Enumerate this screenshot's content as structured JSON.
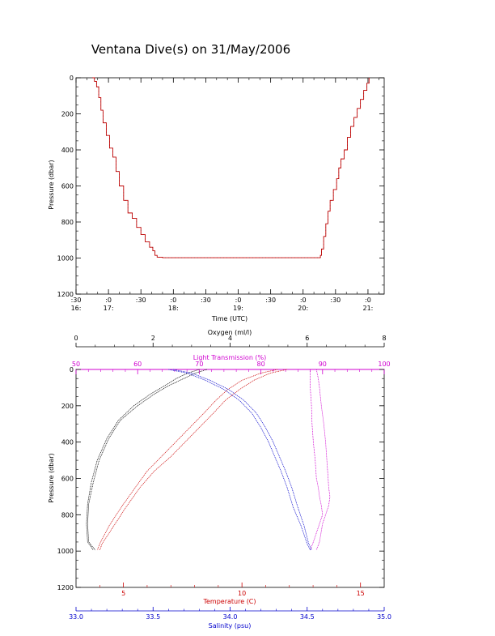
{
  "title": "Ventana Dive(s) on 31/May/2006",
  "colors": {
    "axis": "#000000",
    "oxygen": "#000000",
    "light": "#d000d0",
    "temperature": "#cc0000",
    "salinity": "#0000cc",
    "time_profile": "#cc0000"
  },
  "chart_data": [
    {
      "type": "line",
      "title": "Ventana Dive(s) on 31/May/2006",
      "xlabel": "Time (UTC)",
      "ylabel": "Pressure (dbar)",
      "x_units": "minutes after 16:00 UTC",
      "xlim": [
        30,
        315
      ],
      "ylim": [
        1200,
        0
      ],
      "y_ticks": [
        "0",
        "200",
        "400",
        "600",
        "800",
        "1000",
        "1200"
      ],
      "x_ticks": [
        {
          "x": 30,
          "minute": ":30",
          "hour": "16:"
        },
        {
          "x": 60,
          "minute": ":0",
          "hour": "17:"
        },
        {
          "x": 90,
          "minute": ":30",
          "hour": ""
        },
        {
          "x": 120,
          "minute": ":0",
          "hour": "18:"
        },
        {
          "x": 150,
          "minute": ":30",
          "hour": ""
        },
        {
          "x": 180,
          "minute": ":0",
          "hour": "19:"
        },
        {
          "x": 210,
          "minute": ":30",
          "hour": ""
        },
        {
          "x": 240,
          "minute": ":0",
          "hour": "20:"
        },
        {
          "x": 270,
          "minute": ":30",
          "hour": ""
        },
        {
          "x": 300,
          "minute": ":0",
          "hour": "21:"
        }
      ],
      "series": [
        {
          "x": [
            45,
            47,
            49,
            51,
            53,
            55,
            58,
            61,
            64,
            67,
            70,
            74,
            78,
            82,
            86,
            90,
            94,
            98,
            101,
            103,
            105,
            110,
            130,
            150,
            170,
            190,
            210,
            230,
            250,
            256,
            257,
            259,
            261,
            263,
            265,
            268,
            271,
            273,
            275,
            278,
            281,
            284,
            287,
            290,
            293,
            296,
            299,
            301
          ],
          "y": [
            0,
            20,
            50,
            110,
            180,
            250,
            320,
            390,
            440,
            520,
            600,
            680,
            750,
            780,
            830,
            870,
            910,
            940,
            960,
            985,
            995,
            998,
            998,
            998,
            998,
            998,
            998,
            998,
            998,
            985,
            950,
            880,
            810,
            740,
            680,
            620,
            560,
            500,
            450,
            400,
            330,
            270,
            220,
            170,
            120,
            70,
            30,
            0
          ]
        }
      ]
    },
    {
      "type": "line",
      "ylabel": "Pressure (dbar)",
      "ylim": [
        1200,
        0
      ],
      "y_ticks": [
        "0",
        "200",
        "400",
        "600",
        "800",
        "1000",
        "1200"
      ],
      "axes": {
        "oxygen": {
          "label": "Oxygen (ml/l)",
          "range": [
            0,
            8
          ],
          "ticks": [
            "0",
            "2",
            "4",
            "6",
            "8"
          ]
        },
        "light": {
          "label": "Light Transmission (%)",
          "range": [
            50,
            100
          ],
          "ticks": [
            "50",
            "60",
            "70",
            "80",
            "90",
            "100"
          ]
        },
        "temperature": {
          "label": "Temperature (C)",
          "range": [
            3,
            16
          ],
          "ticks": [
            "5",
            "10",
            "15"
          ]
        },
        "salinity": {
          "label": "Salinity (psu)",
          "range": [
            33.0,
            35.0
          ],
          "ticks": [
            "33.0",
            "33.5",
            "34.0",
            "34.5",
            "35.0"
          ]
        }
      },
      "series": [
        {
          "axis": "oxygen",
          "x": [
            3.2,
            2.9,
            2.6,
            2.3,
            1.9,
            1.5,
            1.1,
            0.8,
            0.55,
            0.4,
            0.3,
            0.27,
            0.3,
            0.45
          ],
          "y": [
            0,
            20,
            50,
            90,
            140,
            200,
            280,
            380,
            500,
            620,
            740,
            850,
            950,
            995
          ]
        },
        {
          "axis": "oxygen",
          "x": [
            3.4,
            3.1,
            2.8,
            2.4,
            2.0,
            1.6,
            1.15,
            0.85,
            0.6,
            0.45,
            0.33,
            0.3,
            0.33,
            0.5
          ],
          "y": [
            0,
            20,
            50,
            90,
            140,
            200,
            280,
            380,
            500,
            620,
            740,
            850,
            950,
            995
          ]
        },
        {
          "axis": "light",
          "x": [
            88,
            88,
            88,
            88.2,
            88.3,
            88.5,
            88.8,
            89,
            89.3,
            89.5,
            89.8,
            90,
            89.5,
            88.5,
            88
          ],
          "y": [
            0,
            50,
            100,
            200,
            300,
            400,
            500,
            600,
            650,
            700,
            750,
            800,
            850,
            950,
            995
          ]
        },
        {
          "axis": "light",
          "x": [
            89,
            89.3,
            89.5,
            89.8,
            90.2,
            90.5,
            90.7,
            90.9,
            91,
            91.2,
            91,
            90.5,
            90,
            89.5,
            89
          ],
          "y": [
            0,
            50,
            100,
            200,
            300,
            400,
            500,
            600,
            650,
            700,
            750,
            800,
            850,
            950,
            995
          ]
        },
        {
          "axis": "temperature",
          "x": [
            11.5,
            10.8,
            10.0,
            9.4,
            8.9,
            8.4,
            7.8,
            7.2,
            6.6,
            6.0,
            5.5,
            4.9,
            4.4,
            4.0,
            3.9
          ],
          "y": [
            0,
            20,
            60,
            110,
            170,
            240,
            320,
            400,
            480,
            560,
            650,
            760,
            860,
            960,
            995
          ]
        },
        {
          "axis": "temperature",
          "x": [
            11.9,
            11.2,
            10.5,
            9.9,
            9.3,
            8.8,
            8.2,
            7.6,
            7.0,
            6.3,
            5.7,
            5.1,
            4.6,
            4.1,
            4.0
          ],
          "y": [
            0,
            20,
            60,
            110,
            170,
            240,
            320,
            400,
            480,
            560,
            650,
            760,
            860,
            960,
            995
          ]
        },
        {
          "axis": "salinity",
          "x": [
            33.6,
            33.72,
            33.84,
            33.96,
            34.06,
            34.14,
            34.2,
            34.25,
            34.29,
            34.33,
            34.37,
            34.41,
            34.46,
            34.5,
            34.52
          ],
          "y": [
            0,
            20,
            60,
            110,
            170,
            240,
            320,
            400,
            480,
            560,
            650,
            760,
            860,
            960,
            995
          ]
        },
        {
          "axis": "salinity",
          "x": [
            33.63,
            33.75,
            33.87,
            33.99,
            34.09,
            34.17,
            34.23,
            34.28,
            34.32,
            34.36,
            34.4,
            34.44,
            34.48,
            34.51,
            34.53
          ],
          "y": [
            0,
            20,
            60,
            110,
            170,
            240,
            320,
            400,
            480,
            560,
            650,
            760,
            860,
            960,
            995
          ]
        }
      ]
    }
  ]
}
